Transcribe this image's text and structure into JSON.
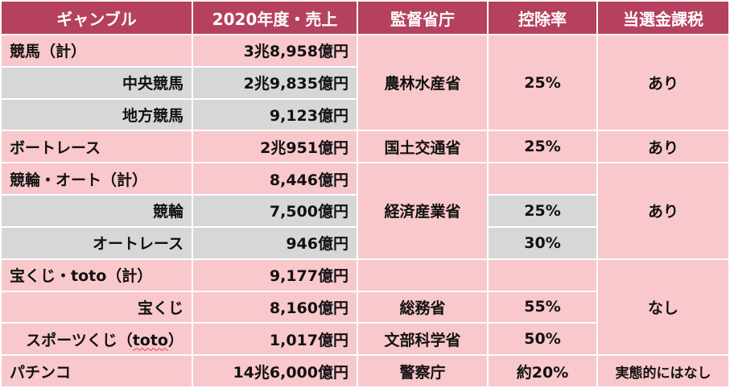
{
  "headers": {
    "gamble": "ギャンブル",
    "sales": "2020年度・売上",
    "ministry": "監督省庁",
    "deduction": "控除率",
    "tax": "当選金課税"
  },
  "rows": {
    "keiba_total": {
      "name": "競馬（計）",
      "sales": "3兆8,958億円"
    },
    "keiba_central": {
      "name": "中央競馬",
      "sales": "2兆9,835億円"
    },
    "keiba_local": {
      "name": "地方競馬",
      "sales": "9,123億円"
    },
    "keiba_group": {
      "ministry": "農林水産省",
      "deduction": "25%",
      "tax": "あり"
    },
    "boat": {
      "name": "ボートレース",
      "sales": "2兆951億円",
      "ministry": "国土交通省",
      "deduction": "25%",
      "tax": "あり"
    },
    "keirin_auto_total": {
      "name": "競輪・オート（計）",
      "sales": "8,446億円"
    },
    "keirin": {
      "name": "競輪",
      "sales": "7,500億円",
      "deduction": "25%"
    },
    "autorace": {
      "name": "オートレース",
      "sales": "946億円",
      "deduction": "30%"
    },
    "keirin_group": {
      "ministry": "経済産業省",
      "tax": "あり"
    },
    "lottery_total": {
      "name_prefix": "宝くじ・",
      "name_toto": "toto",
      "name_suffix": "（計）",
      "sales": "9,177億円"
    },
    "takarakuji": {
      "name": "宝くじ",
      "sales": "8,160億円",
      "ministry": "総務省",
      "deduction": "55%"
    },
    "sports_lottery": {
      "name_prefix": "スポーツくじ（",
      "name_toto": "toto",
      "name_suffix": "）",
      "sales": "1,017億円",
      "ministry": "文部科学省",
      "deduction": "50%"
    },
    "lottery_group": {
      "tax": "なし"
    },
    "pachinko": {
      "name": "パチンコ",
      "sales": "14兆6,000億円",
      "ministry": "警察庁",
      "deduction": "約20%",
      "tax": "実態的にはなし"
    }
  },
  "colors": {
    "header_bg": "#b5415f",
    "header_text": "#ffffff",
    "row_pink": "#f9c8cc",
    "row_gray": "#d7d7d7"
  }
}
